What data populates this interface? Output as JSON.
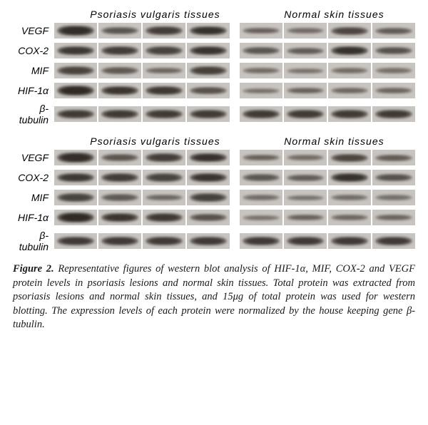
{
  "figure": {
    "headers": {
      "left": "Psoriasis  vulgaris  tissues",
      "right": "Normal skin tissues"
    },
    "proteins": [
      "VEGF",
      "COX-2",
      "MIF",
      "HIF-1α",
      "β-tubulin"
    ],
    "band_bg": "#c8c4c0",
    "panels": [
      {
        "rows": [
          {
            "left": [
              0.92,
              0.55,
              0.78,
              0.88
            ],
            "right": [
              0.45,
              0.35,
              0.7,
              0.5
            ]
          },
          {
            "left": [
              0.82,
              0.78,
              0.72,
              0.86
            ],
            "right": [
              0.55,
              0.5,
              0.88,
              0.6
            ]
          },
          {
            "left": [
              0.72,
              0.52,
              0.4,
              0.75
            ],
            "right": [
              0.35,
              0.3,
              0.35,
              0.32
            ]
          },
          {
            "left": [
              0.95,
              0.85,
              0.82,
              0.6
            ],
            "right": [
              0.3,
              0.45,
              0.4,
              0.42
            ]
          },
          {
            "left": [
              0.8,
              0.8,
              0.8,
              0.8
            ],
            "right": [
              0.8,
              0.8,
              0.8,
              0.8
            ]
          }
        ]
      },
      {
        "rows": [
          {
            "left": [
              0.92,
              0.55,
              0.78,
              0.88
            ],
            "right": [
              0.45,
              0.35,
              0.7,
              0.5
            ]
          },
          {
            "left": [
              0.82,
              0.78,
              0.72,
              0.86
            ],
            "right": [
              0.55,
              0.5,
              0.88,
              0.6
            ]
          },
          {
            "left": [
              0.72,
              0.52,
              0.4,
              0.75
            ],
            "right": [
              0.35,
              0.3,
              0.35,
              0.32
            ]
          },
          {
            "left": [
              0.95,
              0.85,
              0.82,
              0.6
            ],
            "right": [
              0.3,
              0.45,
              0.4,
              0.42
            ]
          },
          {
            "left": [
              0.8,
              0.8,
              0.8,
              0.8
            ],
            "right": [
              0.8,
              0.8,
              0.8,
              0.8
            ]
          }
        ]
      }
    ],
    "band_colors": {
      "dark": "#2a2420",
      "light": "#9a928c"
    },
    "caption": {
      "label": "Figure 2.",
      "text": " Representative figures of western blot analysis of HIF-1α, MIF, COX-2 and VEGF protein levels in psoriasis lesions and normal skin tissues. Total protein was extracted from psoriasis lesions and normal skin tissues, and 15μg of total protein was used for western blotting. The expression levels of each protein were normalized by the house keeping gene β-tubulin."
    }
  }
}
